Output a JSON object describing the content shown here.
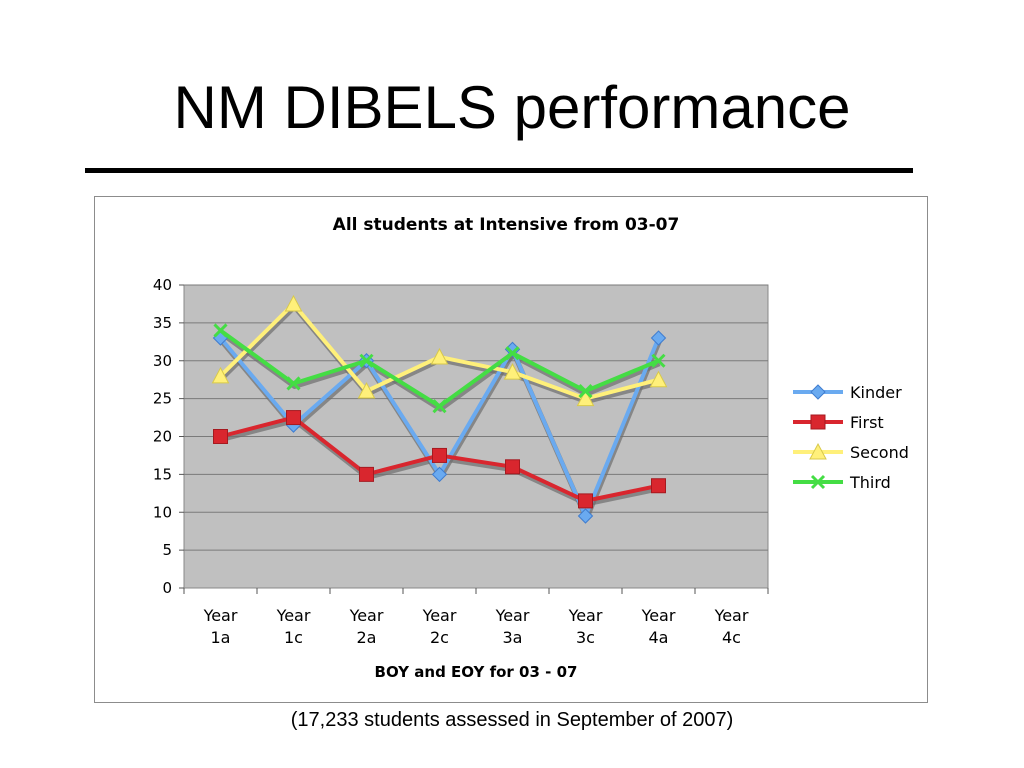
{
  "slide": {
    "title": "NM DIBELS performance",
    "caption": "(17,233 students assessed in September of 2007)"
  },
  "chart_data": {
    "type": "line",
    "title": "All students at Intensive from 03-07",
    "xlabel": "BOY and EOY for 03 - 07",
    "ylabel": "",
    "ylim": [
      0,
      40
    ],
    "yticks": [
      0,
      5,
      10,
      15,
      20,
      25,
      30,
      35,
      40
    ],
    "grid": true,
    "legend_position": "right",
    "plot_background": "#c0c0c0",
    "categories": [
      [
        "Year",
        "1a"
      ],
      [
        "Year",
        "1c"
      ],
      [
        "Year",
        "2a"
      ],
      [
        "Year",
        "2c"
      ],
      [
        "Year",
        "3a"
      ],
      [
        "Year",
        "3c"
      ],
      [
        "Year",
        "4a"
      ],
      [
        "Year",
        "4c"
      ]
    ],
    "series": [
      {
        "name": "Kinder",
        "color": "#6aaaf0",
        "marker": "diamond",
        "values": [
          33,
          21.5,
          30,
          15,
          31.5,
          9.5,
          33,
          null
        ]
      },
      {
        "name": "First",
        "color": "#d9262e",
        "marker": "square",
        "values": [
          20,
          22.5,
          15,
          17.5,
          16,
          11.5,
          13.5,
          null
        ]
      },
      {
        "name": "Second",
        "color": "#fff07a",
        "marker": "triangle",
        "values": [
          28,
          37.5,
          26,
          30.5,
          28.5,
          25,
          27.5,
          null
        ]
      },
      {
        "name": "Third",
        "color": "#44dd44",
        "marker": "x",
        "values": [
          34,
          27,
          30,
          24,
          31,
          26,
          30,
          null
        ]
      }
    ]
  }
}
